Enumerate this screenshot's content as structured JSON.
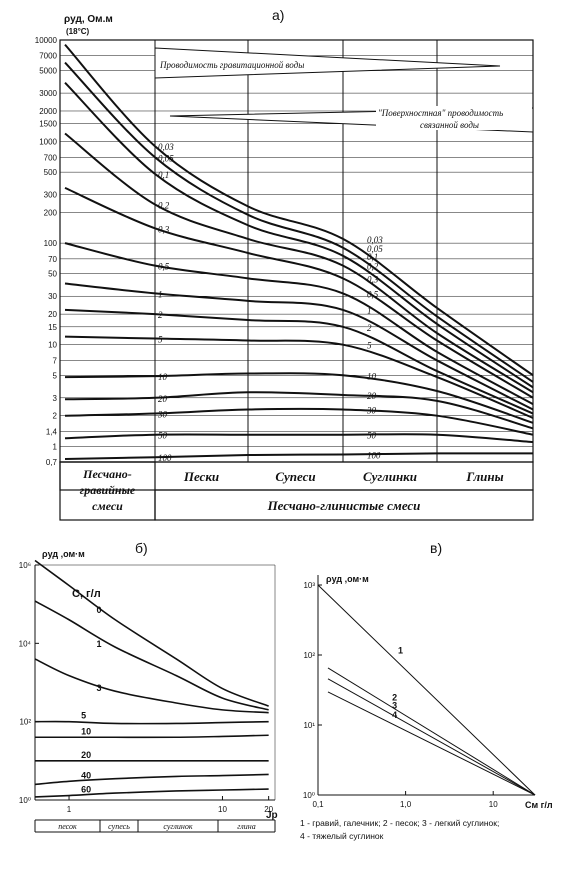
{
  "chart_data": [
    {
      "panel": "а)",
      "type": "line",
      "ylabel": "ρуд, Ом.м",
      "ylabel_note": "(18°С)",
      "yscale": "log",
      "ylim": [
        0.7,
        10000
      ],
      "yticks": [
        "10000",
        "7000",
        "5000",
        "3000",
        "2000",
        "1500",
        "1000",
        "700",
        "500",
        "300",
        "200",
        "100",
        "70",
        "50",
        "30",
        "20",
        "15",
        "10",
        "7",
        "5",
        "3",
        "2",
        "1,4",
        "1",
        "0,7"
      ],
      "ytick_values": [
        10000,
        7000,
        5000,
        3000,
        2000,
        1500,
        1000,
        700,
        500,
        300,
        200,
        100,
        70,
        50,
        30,
        20,
        15,
        10,
        7,
        5,
        3,
        2,
        1.4,
        1,
        0.7
      ],
      "categories": [
        "Пески",
        "Супеси",
        "Суглинки",
        "Глины"
      ],
      "left_group_label": "Песчано-гравийные смеси",
      "bottom_group_label": "Песчано-глинистые смеси",
      "annotations": [
        "Проводимость гравитационной воды",
        "\"Поверхностная\" проводимость связанной воды"
      ],
      "x": [
        0,
        1,
        2,
        3,
        4,
        5
      ],
      "series": [
        {
          "name": "0,03",
          "values": [
            9000,
            900,
            230,
            110,
            23,
            5
          ]
        },
        {
          "name": "0,05",
          "values": [
            6000,
            700,
            190,
            90,
            19,
            4.3
          ]
        },
        {
          "name": "0,1",
          "values": [
            3800,
            480,
            150,
            75,
            16,
            3.8
          ]
        },
        {
          "name": "0,2",
          "values": [
            1200,
            240,
            110,
            60,
            13,
            3.4
          ]
        },
        {
          "name": "0,3",
          "values": [
            350,
            140,
            80,
            45,
            11,
            3
          ]
        },
        {
          "name": "0,5",
          "values": [
            100,
            60,
            45,
            32,
            8.5,
            2.6
          ]
        },
        {
          "name": "1",
          "values": [
            40,
            32,
            27,
            22,
            7,
            2.3
          ]
        },
        {
          "name": "2",
          "values": [
            22,
            20,
            17.5,
            15,
            5.5,
            2.1
          ]
        },
        {
          "name": "5",
          "values": [
            12,
            11.5,
            11,
            10,
            4.8,
            1.9
          ]
        },
        {
          "name": "10",
          "values": [
            4.8,
            4.9,
            5.2,
            5,
            3.5,
            1.7
          ]
        },
        {
          "name": "20",
          "values": [
            2.9,
            3,
            3.4,
            3.2,
            2.8,
            1.5
          ]
        },
        {
          "name": "30",
          "values": [
            2,
            2.1,
            2.3,
            2.3,
            2,
            1.3
          ]
        },
        {
          "name": "50",
          "values": [
            1.2,
            1.3,
            1.3,
            1.3,
            1.3,
            1.1
          ]
        },
        {
          "name": "100",
          "values": [
            0.75,
            0.78,
            0.82,
            0.83,
            0.85,
            0.85
          ]
        }
      ]
    },
    {
      "panel": "б)",
      "type": "line",
      "ylabel": "ρуд ,ом·м",
      "xlabel": "Jp",
      "legend_title": "C, г/л",
      "xscale": "log",
      "yscale": "log",
      "xlim": [
        0.6,
        22
      ],
      "ylim": [
        1,
        1000000
      ],
      "xticks": [
        "1",
        "10",
        "20"
      ],
      "yticks": [
        "10⁶",
        "10⁴",
        "10²",
        "10⁰"
      ],
      "soil_labels": [
        "песок",
        "супесь",
        "суглинок",
        "глина"
      ],
      "x": [
        0.6,
        1,
        2,
        5,
        10,
        20
      ],
      "series": [
        {
          "name": "0",
          "values": [
            1300000,
            300000,
            40000,
            4000,
            700,
            250
          ]
        },
        {
          "name": "1",
          "values": [
            120000,
            40000,
            8000,
            1500,
            400,
            200
          ]
        },
        {
          "name": "3",
          "values": [
            4000,
            1500,
            600,
            300,
            200,
            170
          ]
        },
        {
          "name": "5",
          "values": [
            100,
            100,
            90,
            90,
            95,
            100
          ]
        },
        {
          "name": "10",
          "values": [
            40,
            40,
            40,
            40,
            42,
            45
          ]
        },
        {
          "name": "20",
          "values": [
            10,
            10,
            10,
            10,
            10,
            10
          ]
        },
        {
          "name": "40",
          "values": [
            2.5,
            3,
            3.5,
            4,
            4.2,
            4.5
          ]
        },
        {
          "name": "60",
          "values": [
            1.2,
            1.3,
            1.5,
            1.7,
            1.8,
            1.9
          ]
        }
      ]
    },
    {
      "panel": "в)",
      "type": "line",
      "ylabel": "ρуд ,ом·м",
      "xlabel": "Cм г/л",
      "xscale": "log",
      "yscale": "log",
      "xlim": [
        0.1,
        30
      ],
      "ylim": [
        1,
        1000
      ],
      "xticks": [
        "0,1",
        "1,0",
        "10"
      ],
      "yticks": [
        "10³",
        "10²",
        "10¹",
        "10⁰"
      ],
      "x": [
        0.1,
        30
      ],
      "series": [
        {
          "name": "1",
          "values": [
            1000,
            1
          ]
        },
        {
          "name": "2",
          "values": [
            80,
            1
          ]
        },
        {
          "name": "3",
          "values": [
            55,
            1
          ]
        },
        {
          "name": "4",
          "values": [
            35,
            1
          ]
        }
      ],
      "legend_text": [
        "1 - гравий, галечник; 2 - песок; 3 - легкий суглинок;",
        "4 - тяжелый суглинок"
      ]
    }
  ]
}
